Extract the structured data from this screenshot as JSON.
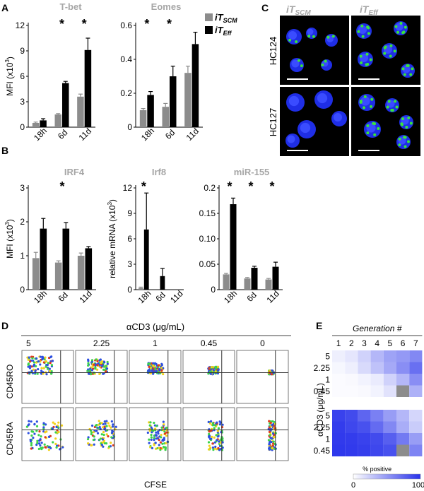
{
  "panel_letters": [
    "A",
    "B",
    "C",
    "D",
    "E"
  ],
  "colors": {
    "scm": "#8c8c8c",
    "eff": "#000000",
    "title_gray": "#a6a6a6",
    "micro_bg": "#000000"
  },
  "legend": {
    "scm": "iT",
    "scm_sub": "SCM",
    "eff": "iT",
    "eff_sub": "Eff"
  },
  "chart_data": [
    {
      "type": "bar",
      "panel": "A",
      "title": "T-bet",
      "ylabel": "MFI (x10",
      "ylabel_sup": "3",
      "ylabel_end": ")",
      "categories": [
        "18h",
        "6d",
        "11d"
      ],
      "ylim": [
        0,
        12
      ],
      "yticks": [
        0,
        3,
        6,
        9,
        12
      ],
      "tick_labels": [
        "0",
        "3",
        "6",
        "9",
        "12"
      ],
      "series": [
        {
          "name": "iTSCM",
          "values": [
            0.5,
            1.5,
            3.6
          ],
          "errors": [
            0.1,
            0.1,
            0.3
          ]
        },
        {
          "name": "iTEff",
          "values": [
            0.8,
            5.2,
            9.1
          ],
          "errors": [
            0.2,
            0.2,
            1.4
          ]
        }
      ],
      "stars": [
        "",
        "*",
        "*"
      ]
    },
    {
      "type": "bar",
      "panel": "A",
      "title": "Eomes",
      "ylabel": "",
      "categories": [
        "18h",
        "6d",
        "11d"
      ],
      "ylim": [
        0,
        0.6
      ],
      "yticks": [
        0,
        0.2,
        0.4,
        0.6
      ],
      "tick_labels": [
        "0",
        "0.2",
        "0.4",
        "0.6"
      ],
      "series": [
        {
          "name": "iTSCM",
          "values": [
            0.1,
            0.12,
            0.32
          ],
          "errors": [
            0.01,
            0.02,
            0.04
          ]
        },
        {
          "name": "iTEff",
          "values": [
            0.19,
            0.3,
            0.49
          ],
          "errors": [
            0.02,
            0.06,
            0.07
          ]
        }
      ],
      "stars": [
        "*",
        "*",
        ""
      ]
    },
    {
      "type": "bar",
      "panel": "B",
      "title": "IRF4",
      "ylabel": "MFI (x10",
      "ylabel_sup": "3",
      "ylabel_end": ")",
      "categories": [
        "18h",
        "6d",
        "11d"
      ],
      "ylim": [
        0,
        3
      ],
      "yticks": [
        0,
        1,
        2,
        3
      ],
      "tick_labels": [
        "0",
        "1",
        "2",
        "3"
      ],
      "series": [
        {
          "name": "iTSCM",
          "values": [
            0.93,
            0.8,
            1.0
          ],
          "errors": [
            0.17,
            0.05,
            0.08
          ]
        },
        {
          "name": "iTEff",
          "values": [
            1.8,
            1.8,
            1.22
          ],
          "errors": [
            0.3,
            0.18,
            0.05
          ]
        }
      ],
      "stars": [
        "",
        "*",
        ""
      ]
    },
    {
      "type": "bar",
      "panel": "B",
      "title": "Irf8",
      "ylabel": "relative mRNA (x10",
      "ylabel_sup": "3",
      "ylabel_end": ")",
      "categories": [
        "18h",
        "6d",
        "11d"
      ],
      "ylim": [
        0,
        12
      ],
      "yticks": [
        0,
        3,
        6,
        9,
        12
      ],
      "tick_labels": [
        "0",
        "3",
        "6",
        "9",
        "12"
      ],
      "series": [
        {
          "name": "iTSCM",
          "values": [
            0.2,
            0,
            0
          ],
          "errors": [
            0.1,
            0,
            0
          ]
        },
        {
          "name": "iTEff",
          "values": [
            7.1,
            1.6,
            0
          ],
          "errors": [
            4.3,
            0.9,
            0
          ]
        }
      ],
      "stars": [
        "*",
        "",
        ""
      ]
    },
    {
      "type": "bar",
      "panel": "B",
      "title": "miR-155",
      "ylabel": "",
      "categories": [
        "18h",
        "6d",
        "11d"
      ],
      "ylim": [
        0,
        0.2
      ],
      "yticks": [
        0,
        0.05,
        0.1,
        0.15,
        0.2
      ],
      "tick_labels": [
        "0",
        "0.05",
        "0.10",
        "0.15",
        "0.2"
      ],
      "series": [
        {
          "name": "iTSCM",
          "values": [
            0.03,
            0.022,
            0.02
          ],
          "errors": [
            0.002,
            0.002,
            0.002
          ]
        },
        {
          "name": "iTEff",
          "values": [
            0.168,
            0.043,
            0.045
          ],
          "errors": [
            0.012,
            0.003,
            0.009
          ]
        }
      ],
      "stars": [
        "*",
        "*",
        "*"
      ]
    },
    {
      "type": "heatmap",
      "panel": "E",
      "title": "Generation #",
      "x": [
        1,
        2,
        3,
        4,
        5,
        6,
        7
      ],
      "ylabel": "αCD3 (μg/mL)",
      "blocks": [
        {
          "rows": [
            "5",
            "2.25",
            "1",
            "0.45"
          ],
          "values": [
            [
              8,
              12,
              22,
              35,
              45,
              50,
              58
            ],
            [
              4,
              8,
              18,
              30,
              42,
              55,
              70
            ],
            [
              2,
              3,
              6,
              10,
              22,
              35,
              55
            ],
            [
              2,
              2,
              3,
              6,
              14,
              null,
              38
            ]
          ]
        },
        {
          "rows": [
            "5",
            "2.25",
            "1",
            "0.45"
          ],
          "values": [
            [
              92,
              88,
              75,
              62,
              48,
              35,
              20
            ],
            [
              95,
              90,
              85,
              72,
              58,
              40,
              25
            ],
            [
              96,
              95,
              92,
              88,
              78,
              65,
              48
            ],
            [
              97,
              96,
              94,
              90,
              85,
              null,
              60
            ]
          ]
        }
      ],
      "scale_label": "% positive",
      "scale_min": "0",
      "scale_max": "100"
    }
  ],
  "panelC": {
    "columns": [
      "iT",
      "iT"
    ],
    "column_subs": [
      "SCM",
      "Eff"
    ],
    "rows": [
      "HC124",
      "HC127"
    ]
  },
  "panelD": {
    "title": "αCD3 (μg/mL)",
    "concentrations": [
      "5",
      "2.25",
      "1",
      "0.45",
      "0"
    ],
    "row_labels": [
      "CD45RO",
      "CD45RA"
    ],
    "xlabel": "CFSE"
  }
}
